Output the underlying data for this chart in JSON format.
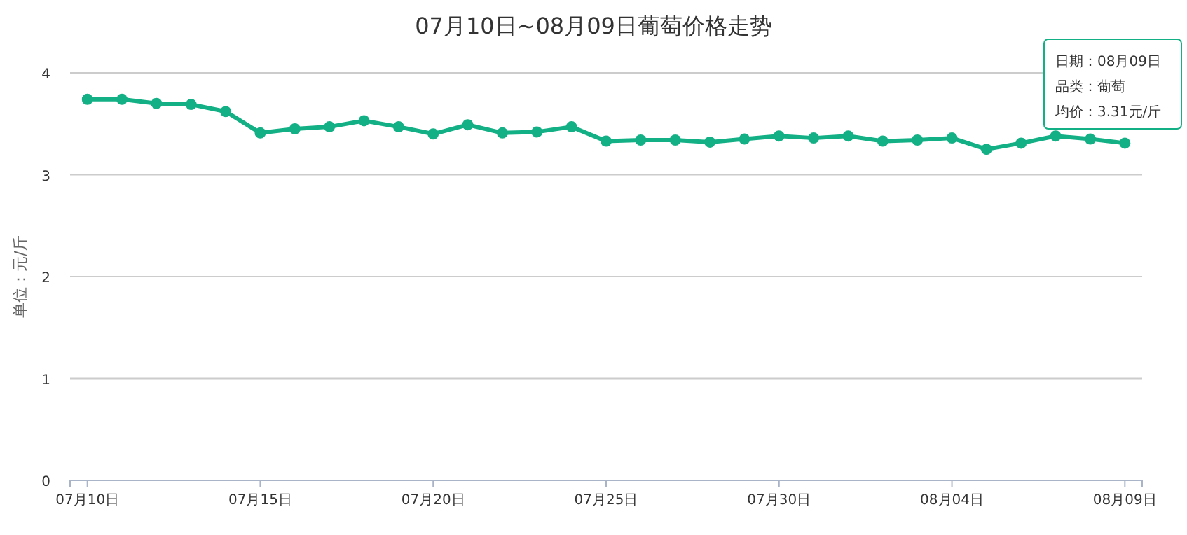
{
  "chart_data": {
    "type": "line",
    "title": "07月10日~08月09日葡萄价格走势",
    "ylabel": "单位：元/斤",
    "categories": [
      "07月10日",
      null,
      null,
      null,
      null,
      "07月15日",
      null,
      null,
      null,
      null,
      "07月20日",
      null,
      null,
      null,
      null,
      "07月25日",
      null,
      null,
      null,
      null,
      "07月30日",
      null,
      null,
      null,
      null,
      "08月04日",
      null,
      null,
      null,
      null,
      "08月09日"
    ],
    "series": [
      {
        "color": "#13b085",
        "values": [
          3.74,
          3.74,
          3.7,
          3.69,
          3.62,
          3.41,
          3.45,
          3.47,
          3.53,
          3.47,
          3.4,
          3.49,
          3.41,
          3.42,
          3.47,
          3.33,
          3.34,
          3.34,
          3.32,
          3.35,
          3.38,
          3.36,
          3.38,
          3.33,
          3.34,
          3.36,
          3.25,
          3.31,
          3.38,
          3.35,
          3.31
        ]
      }
    ],
    "ylim": [
      0,
      4
    ],
    "yticks": [
      0,
      1,
      2,
      3,
      4
    ],
    "grid": "y",
    "marker": "circle",
    "line_style": "solid",
    "annotations": [
      "日期：08月09日",
      "品类：葡萄",
      "均价：3.31元/斤"
    ]
  }
}
